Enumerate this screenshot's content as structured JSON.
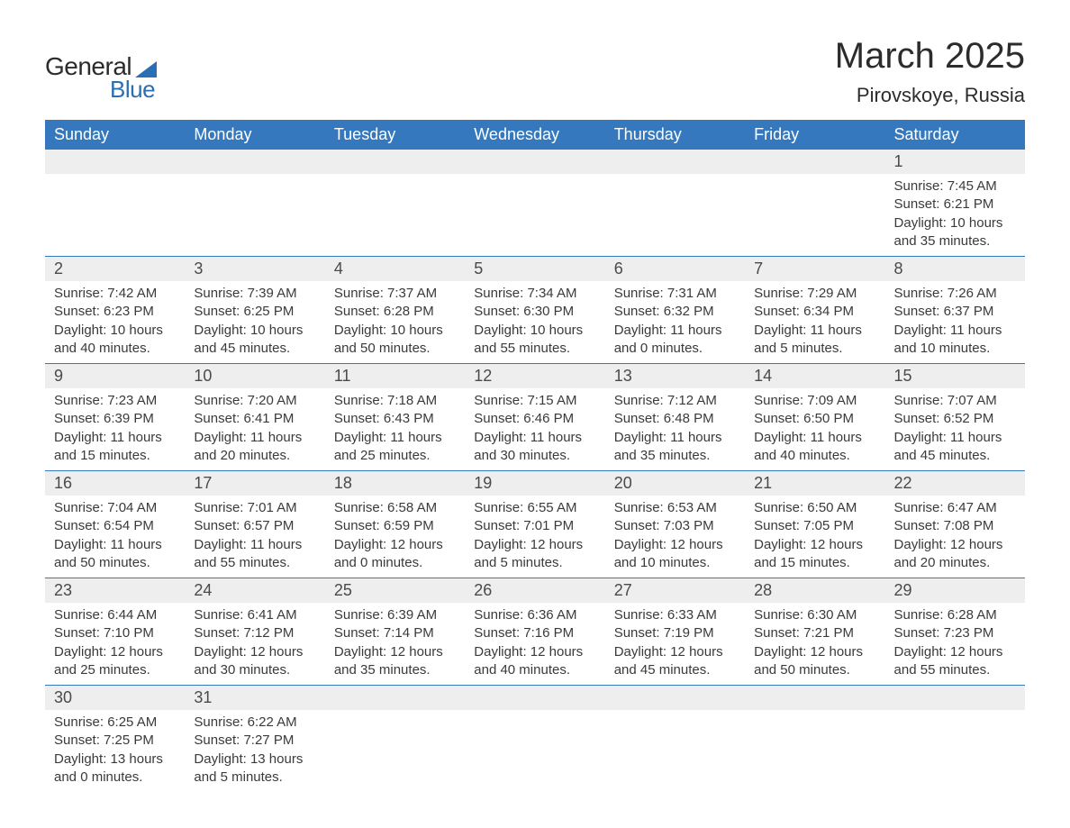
{
  "branding": {
    "logo_general": "General",
    "logo_blue": "Blue",
    "logo_triangle_color": "#2a6fb5",
    "logo_text_color": "#2b2b2b"
  },
  "header": {
    "month_title": "March 2025",
    "location": "Pirovskoye, Russia"
  },
  "colors": {
    "header_bg": "#3578bd",
    "header_text": "#ffffff",
    "daynum_bg": "#eeeeee",
    "row_divider": "#3578bd",
    "body_text": "#3a3a3a",
    "background": "#ffffff"
  },
  "fonts": {
    "month_title_size_pt": 30,
    "location_size_pt": 17,
    "weekday_header_size_pt": 14,
    "daynum_size_pt": 14,
    "body_size_pt": 11
  },
  "weekdays": [
    "Sunday",
    "Monday",
    "Tuesday",
    "Wednesday",
    "Thursday",
    "Friday",
    "Saturday"
  ],
  "weeks": [
    [
      null,
      null,
      null,
      null,
      null,
      null,
      {
        "n": "1",
        "sunrise": "Sunrise: 7:45 AM",
        "sunset": "Sunset: 6:21 PM",
        "daylight1": "Daylight: 10 hours",
        "daylight2": "and 35 minutes."
      }
    ],
    [
      {
        "n": "2",
        "sunrise": "Sunrise: 7:42 AM",
        "sunset": "Sunset: 6:23 PM",
        "daylight1": "Daylight: 10 hours",
        "daylight2": "and 40 minutes."
      },
      {
        "n": "3",
        "sunrise": "Sunrise: 7:39 AM",
        "sunset": "Sunset: 6:25 PM",
        "daylight1": "Daylight: 10 hours",
        "daylight2": "and 45 minutes."
      },
      {
        "n": "4",
        "sunrise": "Sunrise: 7:37 AM",
        "sunset": "Sunset: 6:28 PM",
        "daylight1": "Daylight: 10 hours",
        "daylight2": "and 50 minutes."
      },
      {
        "n": "5",
        "sunrise": "Sunrise: 7:34 AM",
        "sunset": "Sunset: 6:30 PM",
        "daylight1": "Daylight: 10 hours",
        "daylight2": "and 55 minutes."
      },
      {
        "n": "6",
        "sunrise": "Sunrise: 7:31 AM",
        "sunset": "Sunset: 6:32 PM",
        "daylight1": "Daylight: 11 hours",
        "daylight2": "and 0 minutes."
      },
      {
        "n": "7",
        "sunrise": "Sunrise: 7:29 AM",
        "sunset": "Sunset: 6:34 PM",
        "daylight1": "Daylight: 11 hours",
        "daylight2": "and 5 minutes."
      },
      {
        "n": "8",
        "sunrise": "Sunrise: 7:26 AM",
        "sunset": "Sunset: 6:37 PM",
        "daylight1": "Daylight: 11 hours",
        "daylight2": "and 10 minutes."
      }
    ],
    [
      {
        "n": "9",
        "sunrise": "Sunrise: 7:23 AM",
        "sunset": "Sunset: 6:39 PM",
        "daylight1": "Daylight: 11 hours",
        "daylight2": "and 15 minutes."
      },
      {
        "n": "10",
        "sunrise": "Sunrise: 7:20 AM",
        "sunset": "Sunset: 6:41 PM",
        "daylight1": "Daylight: 11 hours",
        "daylight2": "and 20 minutes."
      },
      {
        "n": "11",
        "sunrise": "Sunrise: 7:18 AM",
        "sunset": "Sunset: 6:43 PM",
        "daylight1": "Daylight: 11 hours",
        "daylight2": "and 25 minutes."
      },
      {
        "n": "12",
        "sunrise": "Sunrise: 7:15 AM",
        "sunset": "Sunset: 6:46 PM",
        "daylight1": "Daylight: 11 hours",
        "daylight2": "and 30 minutes."
      },
      {
        "n": "13",
        "sunrise": "Sunrise: 7:12 AM",
        "sunset": "Sunset: 6:48 PM",
        "daylight1": "Daylight: 11 hours",
        "daylight2": "and 35 minutes."
      },
      {
        "n": "14",
        "sunrise": "Sunrise: 7:09 AM",
        "sunset": "Sunset: 6:50 PM",
        "daylight1": "Daylight: 11 hours",
        "daylight2": "and 40 minutes."
      },
      {
        "n": "15",
        "sunrise": "Sunrise: 7:07 AM",
        "sunset": "Sunset: 6:52 PM",
        "daylight1": "Daylight: 11 hours",
        "daylight2": "and 45 minutes."
      }
    ],
    [
      {
        "n": "16",
        "sunrise": "Sunrise: 7:04 AM",
        "sunset": "Sunset: 6:54 PM",
        "daylight1": "Daylight: 11 hours",
        "daylight2": "and 50 minutes."
      },
      {
        "n": "17",
        "sunrise": "Sunrise: 7:01 AM",
        "sunset": "Sunset: 6:57 PM",
        "daylight1": "Daylight: 11 hours",
        "daylight2": "and 55 minutes."
      },
      {
        "n": "18",
        "sunrise": "Sunrise: 6:58 AM",
        "sunset": "Sunset: 6:59 PM",
        "daylight1": "Daylight: 12 hours",
        "daylight2": "and 0 minutes."
      },
      {
        "n": "19",
        "sunrise": "Sunrise: 6:55 AM",
        "sunset": "Sunset: 7:01 PM",
        "daylight1": "Daylight: 12 hours",
        "daylight2": "and 5 minutes."
      },
      {
        "n": "20",
        "sunrise": "Sunrise: 6:53 AM",
        "sunset": "Sunset: 7:03 PM",
        "daylight1": "Daylight: 12 hours",
        "daylight2": "and 10 minutes."
      },
      {
        "n": "21",
        "sunrise": "Sunrise: 6:50 AM",
        "sunset": "Sunset: 7:05 PM",
        "daylight1": "Daylight: 12 hours",
        "daylight2": "and 15 minutes."
      },
      {
        "n": "22",
        "sunrise": "Sunrise: 6:47 AM",
        "sunset": "Sunset: 7:08 PM",
        "daylight1": "Daylight: 12 hours",
        "daylight2": "and 20 minutes."
      }
    ],
    [
      {
        "n": "23",
        "sunrise": "Sunrise: 6:44 AM",
        "sunset": "Sunset: 7:10 PM",
        "daylight1": "Daylight: 12 hours",
        "daylight2": "and 25 minutes."
      },
      {
        "n": "24",
        "sunrise": "Sunrise: 6:41 AM",
        "sunset": "Sunset: 7:12 PM",
        "daylight1": "Daylight: 12 hours",
        "daylight2": "and 30 minutes."
      },
      {
        "n": "25",
        "sunrise": "Sunrise: 6:39 AM",
        "sunset": "Sunset: 7:14 PM",
        "daylight1": "Daylight: 12 hours",
        "daylight2": "and 35 minutes."
      },
      {
        "n": "26",
        "sunrise": "Sunrise: 6:36 AM",
        "sunset": "Sunset: 7:16 PM",
        "daylight1": "Daylight: 12 hours",
        "daylight2": "and 40 minutes."
      },
      {
        "n": "27",
        "sunrise": "Sunrise: 6:33 AM",
        "sunset": "Sunset: 7:19 PM",
        "daylight1": "Daylight: 12 hours",
        "daylight2": "and 45 minutes."
      },
      {
        "n": "28",
        "sunrise": "Sunrise: 6:30 AM",
        "sunset": "Sunset: 7:21 PM",
        "daylight1": "Daylight: 12 hours",
        "daylight2": "and 50 minutes."
      },
      {
        "n": "29",
        "sunrise": "Sunrise: 6:28 AM",
        "sunset": "Sunset: 7:23 PM",
        "daylight1": "Daylight: 12 hours",
        "daylight2": "and 55 minutes."
      }
    ],
    [
      {
        "n": "30",
        "sunrise": "Sunrise: 6:25 AM",
        "sunset": "Sunset: 7:25 PM",
        "daylight1": "Daylight: 13 hours",
        "daylight2": "and 0 minutes."
      },
      {
        "n": "31",
        "sunrise": "Sunrise: 6:22 AM",
        "sunset": "Sunset: 7:27 PM",
        "daylight1": "Daylight: 13 hours",
        "daylight2": "and 5 minutes."
      },
      null,
      null,
      null,
      null,
      null
    ]
  ]
}
